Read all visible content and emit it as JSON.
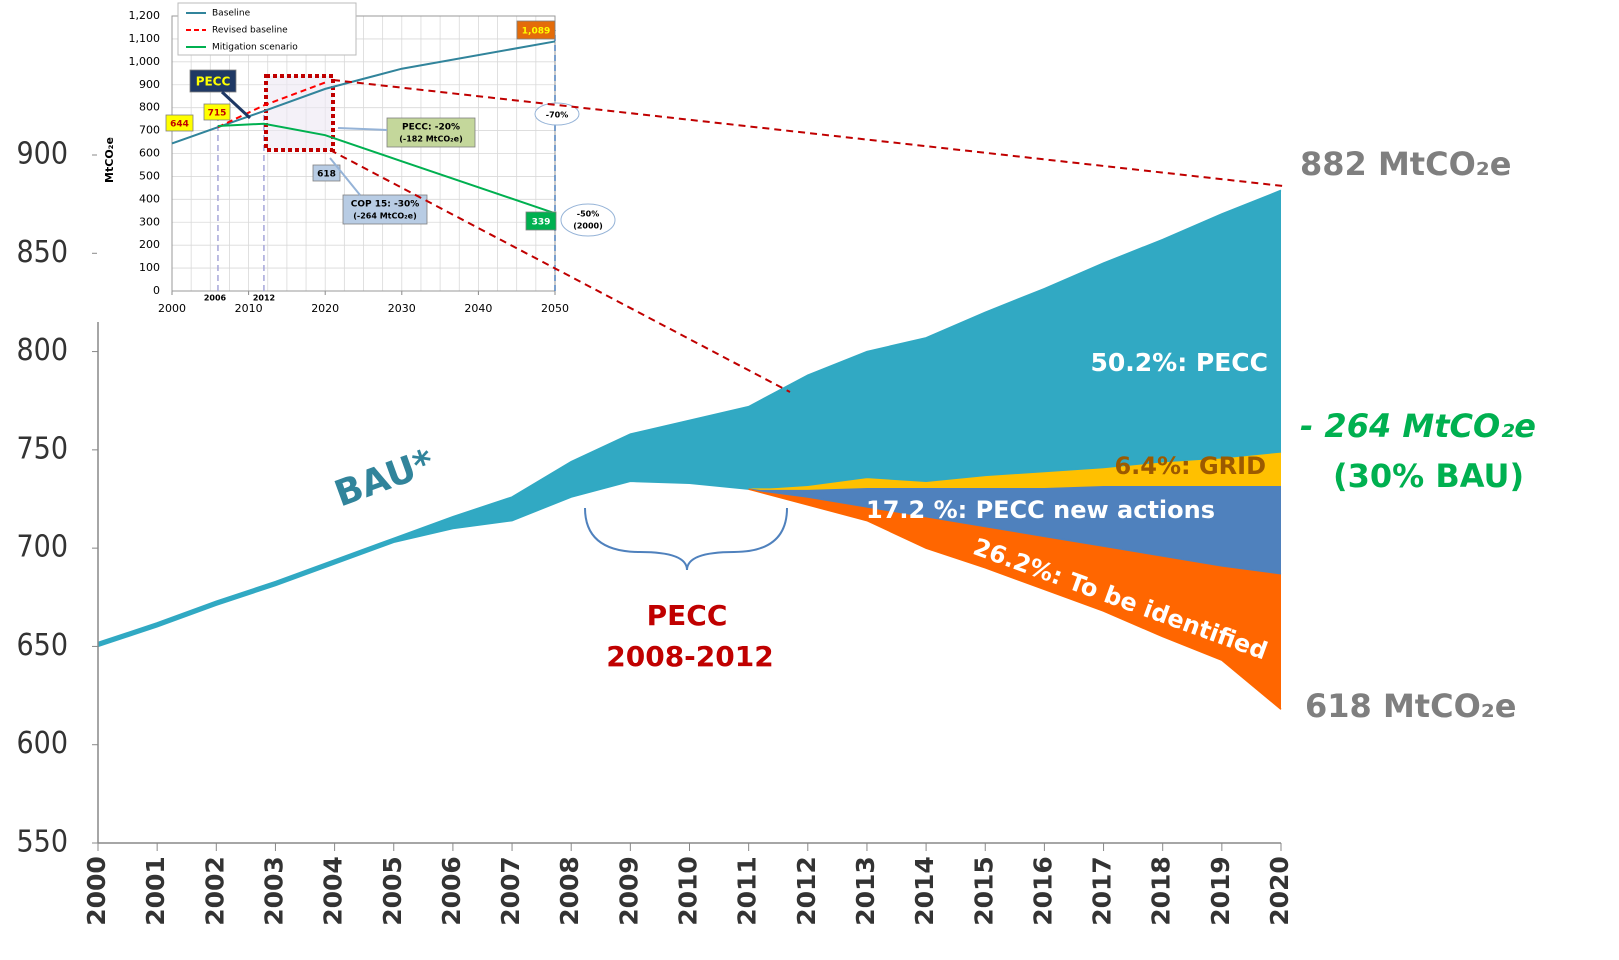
{
  "chart_data": [
    {
      "type": "area",
      "x": [
        2000,
        2001,
        2002,
        2003,
        2004,
        2005,
        2006,
        2007,
        2008,
        2009,
        2010,
        2011,
        2012,
        2013,
        2014,
        2015,
        2016,
        2017,
        2018,
        2019,
        2020
      ],
      "xlim": [
        2000,
        2020
      ],
      "xticks": [
        2000,
        2001,
        2002,
        2003,
        2004,
        2005,
        2006,
        2007,
        2008,
        2009,
        2010,
        2011,
        2012,
        2013,
        2014,
        2015,
        2016,
        2017,
        2018,
        2019,
        2020
      ],
      "ylim": [
        550,
        900
      ],
      "yticks": [
        550,
        600,
        650,
        700,
        750,
        800,
        850,
        900
      ],
      "series": [
        {
          "name": "BAU*",
          "color": "#31a9c3",
          "values": [
            652,
            662,
            673,
            683,
            694,
            705,
            716,
            726,
            744,
            758,
            765,
            772,
            788,
            800,
            807,
            820,
            832,
            845,
            857,
            870,
            882
          ]
        },
        {
          "name": "50.2%: PECC",
          "color": "#31a9c3",
          "values": [
            650,
            660,
            671,
            681,
            692,
            703,
            710,
            714,
            726,
            734,
            733,
            730,
            732,
            736,
            734,
            737,
            739,
            741,
            744,
            746,
            749
          ]
        },
        {
          "name": "6.4%: GRID",
          "color": "#ffc000",
          "values": [
            null,
            null,
            null,
            null,
            null,
            null,
            null,
            null,
            null,
            null,
            null,
            730,
            730,
            731,
            731,
            731,
            731,
            732,
            732,
            732,
            732
          ]
        },
        {
          "name": "17.2 %: PECC new actions",
          "color": "#4f81bd",
          "values": [
            null,
            null,
            null,
            null,
            null,
            null,
            null,
            null,
            null,
            null,
            null,
            730,
            726,
            721,
            716,
            711,
            706,
            701,
            696,
            691,
            687
          ]
        },
        {
          "name": "26.2%: To be identified",
          "color": "#ff6600",
          "values": [
            null,
            null,
            null,
            null,
            null,
            null,
            null,
            null,
            null,
            null,
            null,
            730,
            722,
            714,
            700,
            690,
            679,
            668,
            655,
            643,
            618
          ]
        }
      ],
      "annotations": [
        "882 MtCO₂e",
        "618 MtCO₂e",
        "- 264 MtCO₂e",
        "(30%  BAU)",
        "PECC",
        "2008-2012"
      ]
    },
    {
      "type": "line",
      "x": [
        2000,
        2006,
        2012,
        2020,
        2030,
        2050
      ],
      "xlim": [
        2000,
        2050
      ],
      "xticks": [
        2000,
        2010,
        2020,
        2030,
        2040,
        2050
      ],
      "ylim": [
        0,
        1200
      ],
      "yticks": [
        0,
        100,
        200,
        300,
        400,
        500,
        600,
        700,
        800,
        900,
        {
          "value": 1000,
          "label": "1,000"
        },
        {
          "value": 1100,
          "label": "1,100"
        },
        {
          "value": 1200,
          "label": "1,200"
        }
      ],
      "ylabel": "MtCO₂e",
      "series": [
        {
          "name": "Baseline",
          "color": "#31849b",
          "values": [
            644,
            715,
            785,
            882,
            970,
            1089
          ]
        },
        {
          "name": "Revised baseline",
          "color": "#ff0000",
          "values": [
            null,
            715,
            810,
            910,
            null,
            null
          ]
        },
        {
          "name": "Mitigation scenario",
          "color": "#00b050",
          "values": [
            null,
            720,
            730,
            680,
            566,
            339
          ]
        }
      ],
      "annotations": [
        "PECC",
        "644",
        "715",
        "PECC: -20%",
        "(-182 MtCO₂e)",
        "618",
        "COP 15: -30%",
        "(-264 MtCO₂e)",
        "1,089",
        "339",
        "-70%",
        "-50%",
        "(2000)",
        "2006",
        "2012"
      ]
    }
  ]
}
